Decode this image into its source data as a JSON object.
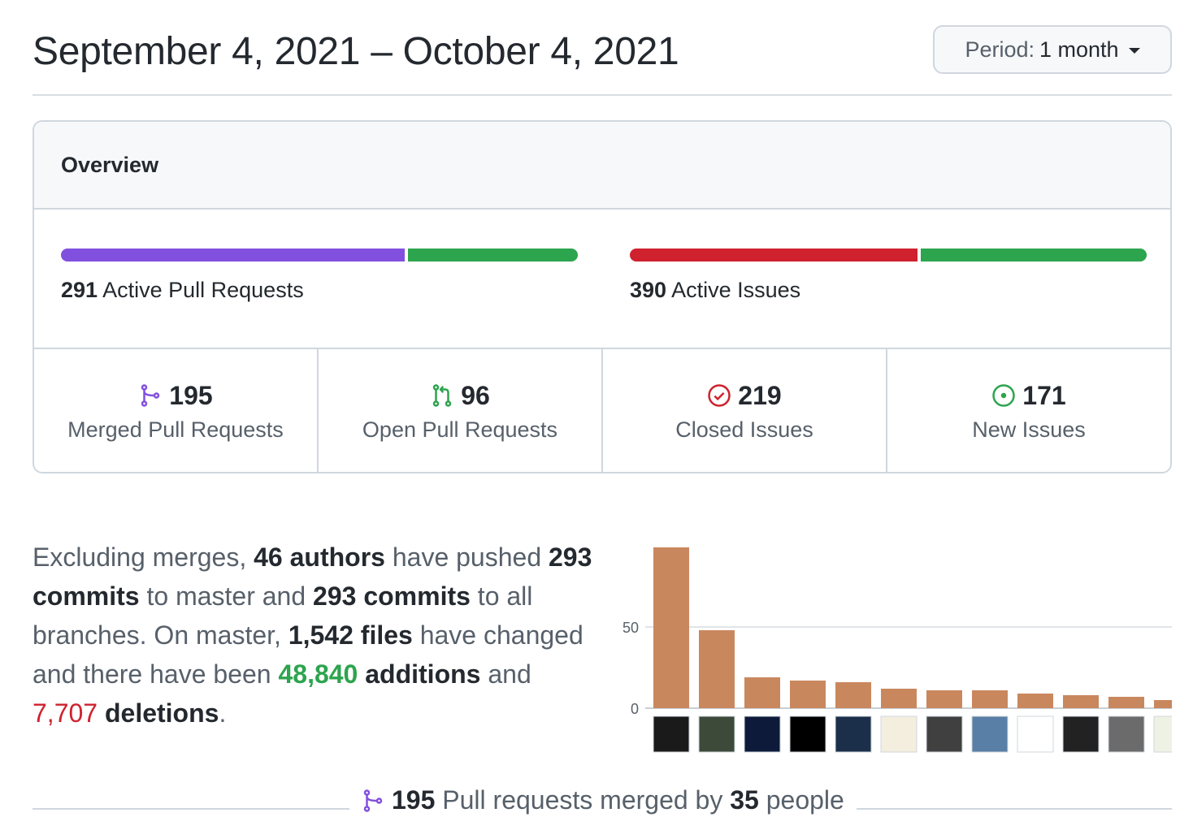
{
  "header": {
    "title": "September 4, 2021 – October 4, 2021",
    "period_label": "Period:",
    "period_value": "1 month"
  },
  "overview": {
    "title": "Overview",
    "pull_requests_bar": {
      "count": "291",
      "label": "Active Pull Requests",
      "merged_fraction": 0.67,
      "colors": [
        "#8250df",
        "#2da44e"
      ]
    },
    "issues_bar": {
      "count": "390",
      "label": "Active Issues",
      "closed_fraction": 0.56,
      "colors": [
        "#cf222e",
        "#2da44e"
      ]
    },
    "stats": [
      {
        "icon": "git-merge-icon",
        "value": "195",
        "label": "Merged Pull Requests",
        "color": "#8250df"
      },
      {
        "icon": "git-pull-request-icon",
        "value": "96",
        "label": "Open Pull Requests",
        "color": "#2da44e"
      },
      {
        "icon": "issue-closed-icon",
        "value": "219",
        "label": "Closed Issues",
        "color": "#cf222e"
      },
      {
        "icon": "issue-opened-icon",
        "value": "171",
        "label": "New Issues",
        "color": "#2da44e"
      }
    ]
  },
  "summary": {
    "t1": "Excluding merges, ",
    "authors": "46 authors",
    "t2": " have pushed ",
    "commits_master": "293 commits",
    "t3": " to master and ",
    "commits_all": "293 commits",
    "t4": " to all branches. On master, ",
    "files": "1,542 files",
    "t5": " have changed and there have been ",
    "additions_num": "48,840",
    "additions_word": " additions",
    "t6": " and ",
    "deletions_num": "7,707",
    "deletions_word": " deletions",
    "t7": "."
  },
  "chart_data": {
    "type": "bar",
    "yticks": [
      "50",
      "0"
    ],
    "ylim": [
      0,
      100
    ],
    "values": [
      99,
      48,
      19,
      17,
      16,
      12,
      11,
      11,
      9,
      8,
      7,
      5
    ],
    "bar_color": "#c9875e",
    "avatar_colors": [
      "#1a1a1a",
      "#3d4a3a",
      "#0d1a3a",
      "#000000",
      "#1c2f4a",
      "#f3eede",
      "#404040",
      "#5a7fa6",
      "#ffffff",
      "#222222",
      "#6b6b6b",
      "#eef2e4"
    ]
  },
  "footer": {
    "count": "195",
    "t1": " Pull requests merged by ",
    "people": "35",
    "t2": " people"
  }
}
